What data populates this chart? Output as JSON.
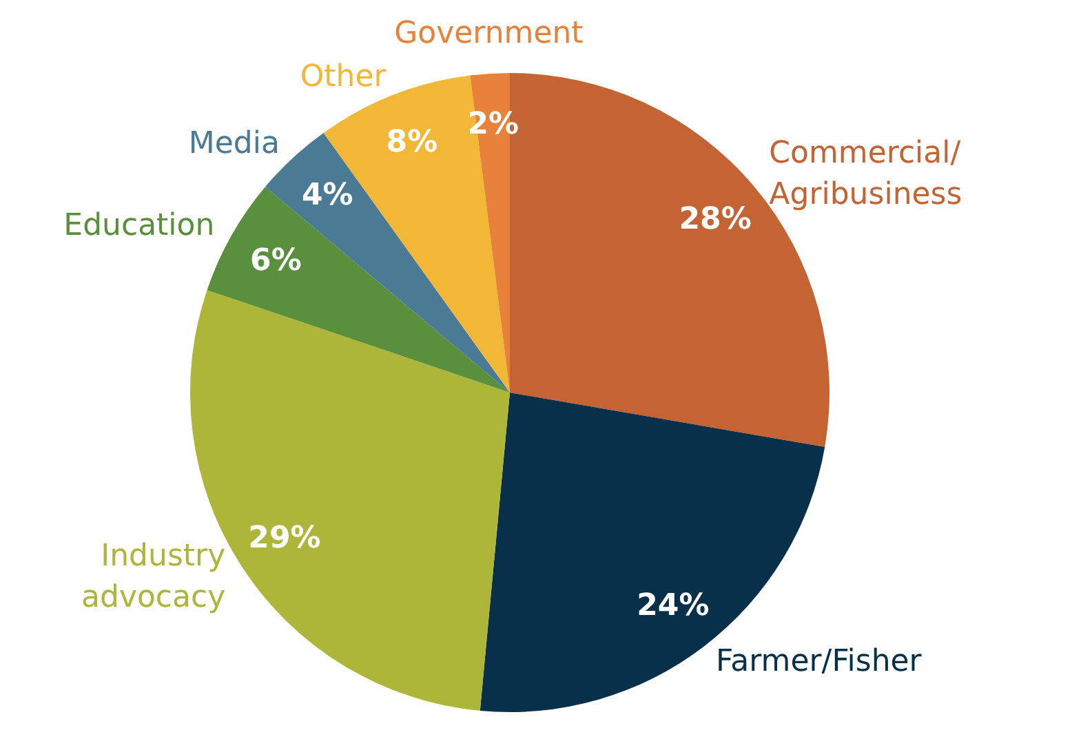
{
  "chart_data": {
    "type": "pie",
    "categories": [
      "Commercial/Agribusiness",
      "Farmer/Fisher",
      "Industry advocacy",
      "Education",
      "Media",
      "Other",
      "Government"
    ],
    "values": [
      28,
      24,
      29,
      6,
      4,
      8,
      2
    ],
    "colors": [
      "#c46333",
      "#08304a",
      "#aeb63a",
      "#5a8f3e",
      "#4a7a94",
      "#f2b737",
      "#e8813a"
    ],
    "value_labels": [
      "28%",
      "24%",
      "29%",
      "6%",
      "4%",
      "8%",
      "2%"
    ]
  }
}
